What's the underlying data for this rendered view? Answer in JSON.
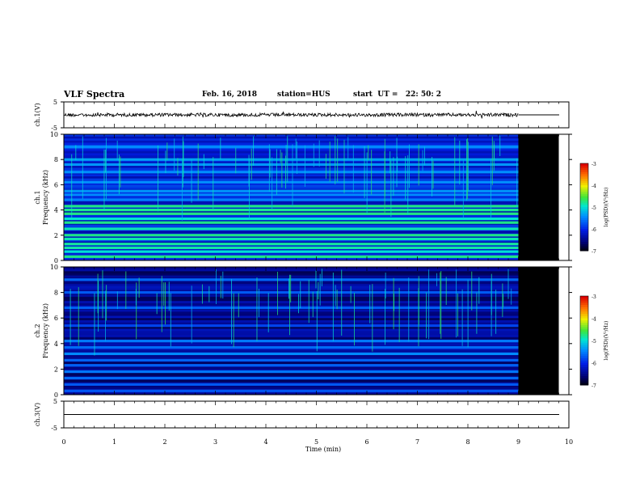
{
  "header": {
    "title": "VLF Spectra",
    "date": "Feb. 16, 2018",
    "station": "station=HUS",
    "start_time": "start  UT =   22: 50: 2"
  },
  "chart_data": [
    {
      "type": "line",
      "ylabel": "ch.1(V)",
      "ylim": [
        -5,
        5
      ],
      "yticks": [
        "5",
        "-5"
      ],
      "xlim": [
        0,
        10
      ],
      "description_values": {
        "baseline_V": 0,
        "data_end_min": 9.0
      }
    },
    {
      "type": "heatmap",
      "ylabel_lines": [
        "ch.1",
        "Frequency (kHz)"
      ],
      "ylim": [
        0,
        10
      ],
      "yticks": [
        "0",
        "2",
        "4",
        "6",
        "8",
        "10"
      ],
      "xlim": [
        0,
        10
      ],
      "data_end_min": 9.0,
      "colorbar": {
        "label": "log(PSD)(V²/Hz)",
        "range": [
          -7,
          -3
        ],
        "ticks": [
          "-3",
          "-4",
          "-5",
          "-6",
          "-7"
        ]
      },
      "bands_kHz": [
        0.3,
        0.7,
        1.0,
        1.3,
        1.7,
        2.0,
        2.5,
        3.0,
        3.3,
        3.7,
        4.0,
        4.3,
        4.8,
        5.2,
        5.5,
        6.2,
        7.0,
        7.6,
        8.0,
        9.0
      ]
    },
    {
      "type": "heatmap",
      "ylabel_lines": [
        "ch.2",
        "Frequency (kHz)"
      ],
      "ylim": [
        0,
        10
      ],
      "yticks": [
        "0",
        "2",
        "4",
        "6",
        "8",
        "10"
      ],
      "xlim": [
        0,
        10
      ],
      "data_end_min": 9.0,
      "colorbar": {
        "label": "log(PSD)(V²/Hz)",
        "range": [
          -7,
          -3
        ],
        "ticks": [
          "-3",
          "-4",
          "-5",
          "-6",
          "-7"
        ]
      },
      "bands_kHz": [
        0.3,
        0.8,
        1.3,
        1.8,
        2.3,
        2.7,
        3.2,
        3.7,
        4.2,
        5.4,
        6.8,
        8.0,
        9.0
      ]
    },
    {
      "type": "line",
      "ylabel": "ch.3(V)",
      "ylim": [
        -5,
        5
      ],
      "yticks": [
        "5",
        "-5"
      ],
      "xlim": [
        0,
        10
      ],
      "description_values": {
        "baseline_V": 0
      }
    }
  ],
  "xaxis": {
    "label": "Time (min)",
    "ticks": [
      "0",
      "1",
      "2",
      "3",
      "4",
      "5",
      "6",
      "7",
      "8",
      "9",
      "10"
    ]
  },
  "colors": {
    "axis": "#000000",
    "nodata": "#000000"
  }
}
